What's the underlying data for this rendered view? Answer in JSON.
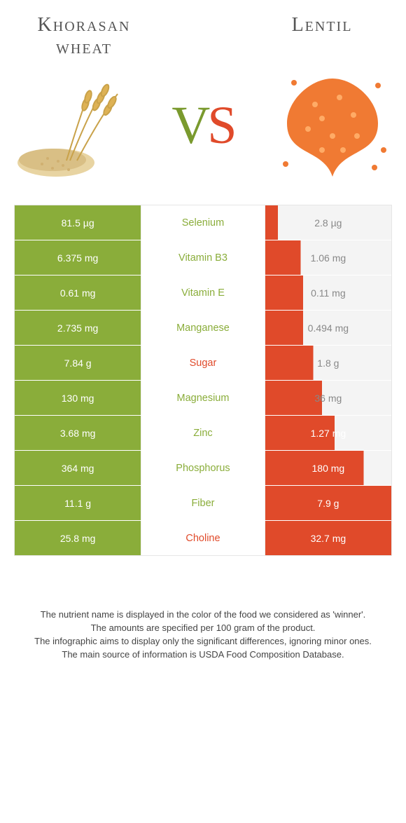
{
  "colors": {
    "left_food": "#8aad3a",
    "right_food": "#e04a2a",
    "neutral_bg": "#f4f4f4",
    "neutral_text": "#888888",
    "border": "#e6e6e6",
    "left_pale": "#cdd9a3",
    "right_pale": "#f2b7a7"
  },
  "header": {
    "left_title": "Khorasan wheat",
    "right_title": "Lentil",
    "vs_v": "V",
    "vs_s": "S"
  },
  "table": {
    "rows": [
      {
        "nutrient": "Selenium",
        "left": "81.5 µg",
        "right": "2.8 µg",
        "winner": "left",
        "left_bar": 1.0,
        "right_bar": 0.1
      },
      {
        "nutrient": "Vitamin B3",
        "left": "6.375 mg",
        "right": "1.06 mg",
        "winner": "left",
        "left_bar": 1.0,
        "right_bar": 0.28
      },
      {
        "nutrient": "Vitamin E",
        "left": "0.61 mg",
        "right": "0.11 mg",
        "winner": "left",
        "left_bar": 1.0,
        "right_bar": 0.3
      },
      {
        "nutrient": "Manganese",
        "left": "2.735 mg",
        "right": "0.494 mg",
        "winner": "left",
        "left_bar": 1.0,
        "right_bar": 0.3
      },
      {
        "nutrient": "Sugar",
        "left": "7.84 g",
        "right": "1.8 g",
        "winner": "right",
        "left_bar": 1.0,
        "right_bar": 0.38
      },
      {
        "nutrient": "Magnesium",
        "left": "130 mg",
        "right": "36 mg",
        "winner": "left",
        "left_bar": 1.0,
        "right_bar": 0.45
      },
      {
        "nutrient": "Zinc",
        "left": "3.68 mg",
        "right": "1.27 mg",
        "winner": "left",
        "left_bar": 1.0,
        "right_bar": 0.55
      },
      {
        "nutrient": "Phosphorus",
        "left": "364 mg",
        "right": "180 mg",
        "winner": "left",
        "left_bar": 1.0,
        "right_bar": 0.78
      },
      {
        "nutrient": "Fiber",
        "left": "11.1 g",
        "right": "7.9 g",
        "winner": "left",
        "left_bar": 1.0,
        "right_bar": 1.0
      },
      {
        "nutrient": "Choline",
        "left": "25.8 mg",
        "right": "32.7 mg",
        "winner": "right",
        "left_bar": 1.0,
        "right_bar": 1.0
      }
    ]
  },
  "footer": {
    "line1": "The nutrient name is displayed in the color of the food we considered as 'winner'.",
    "line2": "The amounts are specified per 100 gram of the product.",
    "line3": "The infographic aims to display only the significant differences, ignoring minor ones.",
    "line4": "The main source of information is USDA Food Composition Database."
  }
}
